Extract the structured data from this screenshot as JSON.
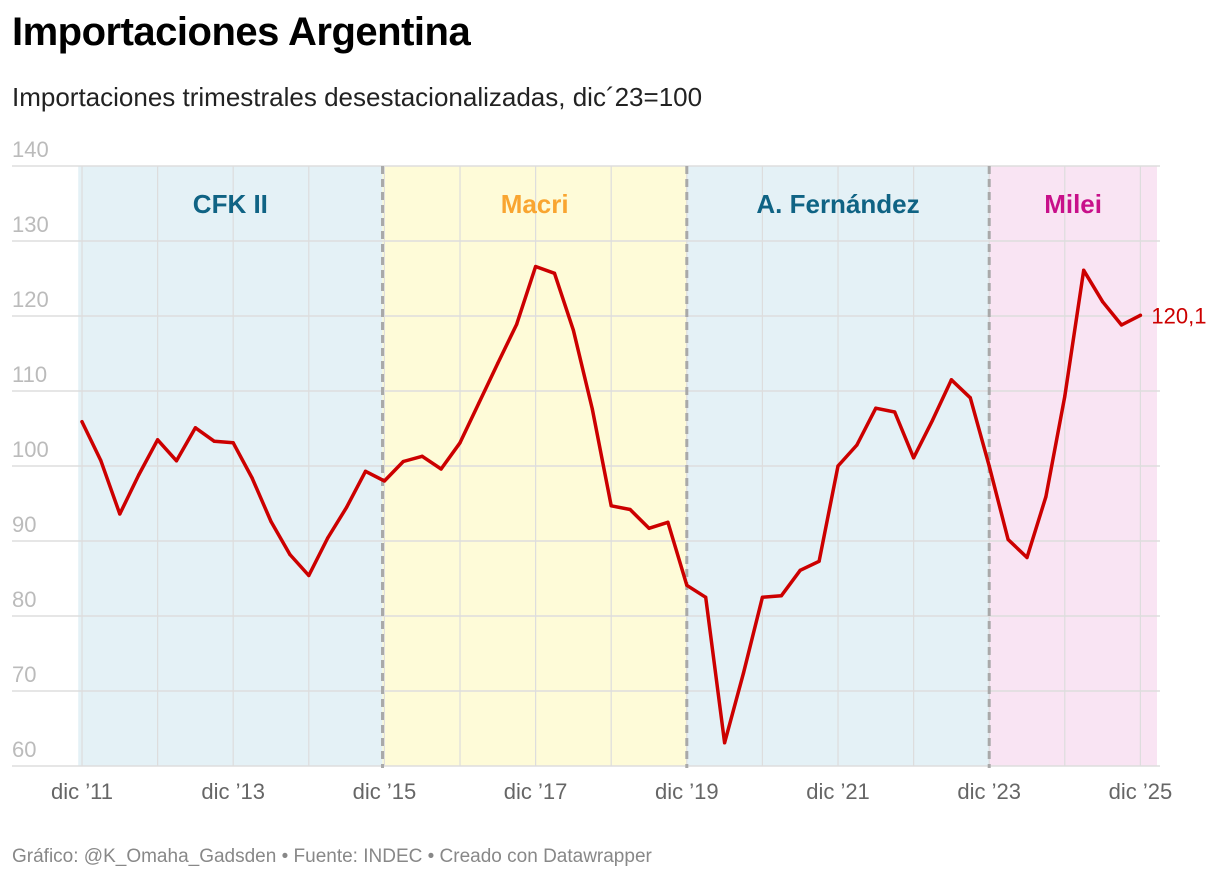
{
  "title": "Importaciones Argentina",
  "subtitle": "Importaciones trimestrales desestacionalizadas, dic´23=100",
  "footer": "Gráfico: @K_Omaha_Gadsden • Fuente: INDEC • Creado con Datawrapper",
  "chart_data": {
    "type": "line",
    "title": "Importaciones Argentina",
    "subtitle": "Importaciones trimestrales desestacionalizadas, dic´23=100",
    "xlabel": "",
    "ylabel": "",
    "ylim": [
      60,
      140
    ],
    "yticks": [
      60,
      70,
      80,
      90,
      100,
      110,
      120,
      130,
      140
    ],
    "xlim": [
      0,
      56.5
    ],
    "x_ticks": [
      {
        "x": 0,
        "label": "dic ’11"
      },
      {
        "x": 8,
        "label": "dic ’13"
      },
      {
        "x": 16,
        "label": "dic ’15"
      },
      {
        "x": 24,
        "label": "dic ’17"
      },
      {
        "x": 32,
        "label": "dic ’19"
      },
      {
        "x": 40,
        "label": "dic ’21"
      },
      {
        "x": 48,
        "label": "dic ’23"
      },
      {
        "x": 56,
        "label": "dic ’25"
      }
    ],
    "x_unit": "quarters since dic ’11",
    "series": [
      {
        "name": "Importaciones",
        "color": "#cc0000",
        "values": [
          105.9,
          100.7,
          93.6,
          98.8,
          103.5,
          100.7,
          105.1,
          103.3,
          103.1,
          98.4,
          92.6,
          88.2,
          85.4,
          90.4,
          94.5,
          99.3,
          98.0,
          100.6,
          101.3,
          99.6,
          103.1,
          108.4,
          113.7,
          118.9,
          126.6,
          125.7,
          118.1,
          107.6,
          94.7,
          94.2,
          91.7,
          92.5,
          84.1,
          82.5,
          63.1,
          72.4,
          82.5,
          82.7,
          86.1,
          87.3,
          100.0,
          102.8,
          107.7,
          107.2,
          101.1,
          106.1,
          111.5,
          109.1,
          100.0,
          90.2,
          87.8,
          95.9,
          109.3,
          126.1,
          121.9,
          118.8,
          120.1
        ],
        "end_label": "120,1"
      }
    ],
    "periods": [
      {
        "name": "CFK II",
        "start": -0.2,
        "end": 15.9,
        "fill": "#e4f1f6",
        "label_color": "#0f6384"
      },
      {
        "name": "Macri",
        "start": 15.9,
        "end": 32.0,
        "fill": "#fefbd8",
        "label_color": "#f9a531"
      },
      {
        "name": "A. Fernández",
        "start": 32.0,
        "end": 48.0,
        "fill": "#e4f1f6",
        "label_color": "#0f6384"
      },
      {
        "name": "Milei",
        "start": 48.0,
        "end": 56.9,
        "fill": "#f9e4f3",
        "label_color": "#c8108a"
      }
    ],
    "period_separators": [
      15.9,
      32.0,
      48.0
    ]
  }
}
